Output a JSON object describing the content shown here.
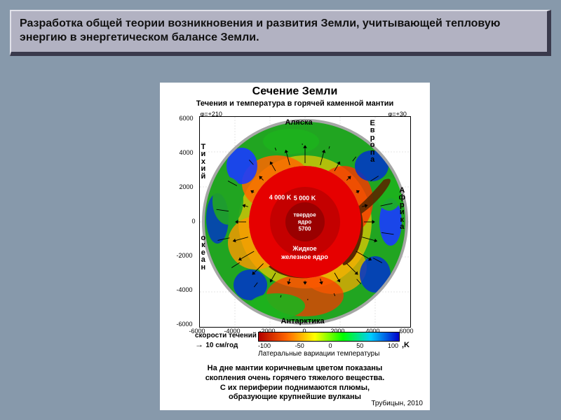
{
  "header": {
    "text": " Разработка общей теории возникновения и развития Земли, учитывающей тепловую энергию в энергетическом балансе Земли."
  },
  "figure": {
    "title": "Сечение  Земли",
    "subtitle": "Течения и температура в горячей каменной мантии",
    "phi_left": "φ=+210",
    "phi_right": "φ=+30",
    "axis_ticks": [
      "-6000",
      "-4000",
      "-2000",
      "0",
      "2000",
      "4000",
      "6000"
    ],
    "core": {
      "outer_color": "#e60000",
      "middle_color": "#c40000",
      "inner_color": "#9a0000",
      "outer_temp": "4 000 K",
      "middle_temp": "5 000 K",
      "inner_label_top": "твердое",
      "inner_label_bot": "ядро",
      "inner_val": "5700",
      "liquid_label_top": "Жидкое",
      "liquid_label_bot": "железное ядро"
    },
    "geo_labels": {
      "alaska": "Аляска",
      "europe": "Европа",
      "pacific": "Тихий",
      "africa": "Африка",
      "ocean": "океан",
      "antarctica": "Антарктика"
    },
    "velocity": {
      "line1": "скорости течений",
      "line2": "10 см/год"
    },
    "colorbar": {
      "gradient_stops": [
        "#b30000",
        "#ff6600",
        "#ffff00",
        "#00ff00",
        "#00ccff",
        "#0000cc"
      ],
      "ticks": [
        "-100",
        "-50",
        "0",
        "50",
        "100"
      ],
      "label": "Латеральные вариации температуры",
      "unit": ",K"
    },
    "bottom_text": [
      "На дне мантии коричневым цветом показаны",
      "скопления очень горячего тяжелого вещества.",
      "С их периферии поднимаются  плюмы,",
      "образующие крупнейшие вулканы"
    ],
    "credit": "Трубицын, 2010"
  },
  "colors": {
    "page_bg": "#8799ab",
    "header_bg": "#b2b2c2",
    "panel_bg": "#ffffff",
    "surface_ring": "#a6a6a6",
    "plume_brown": "#5a2800"
  }
}
